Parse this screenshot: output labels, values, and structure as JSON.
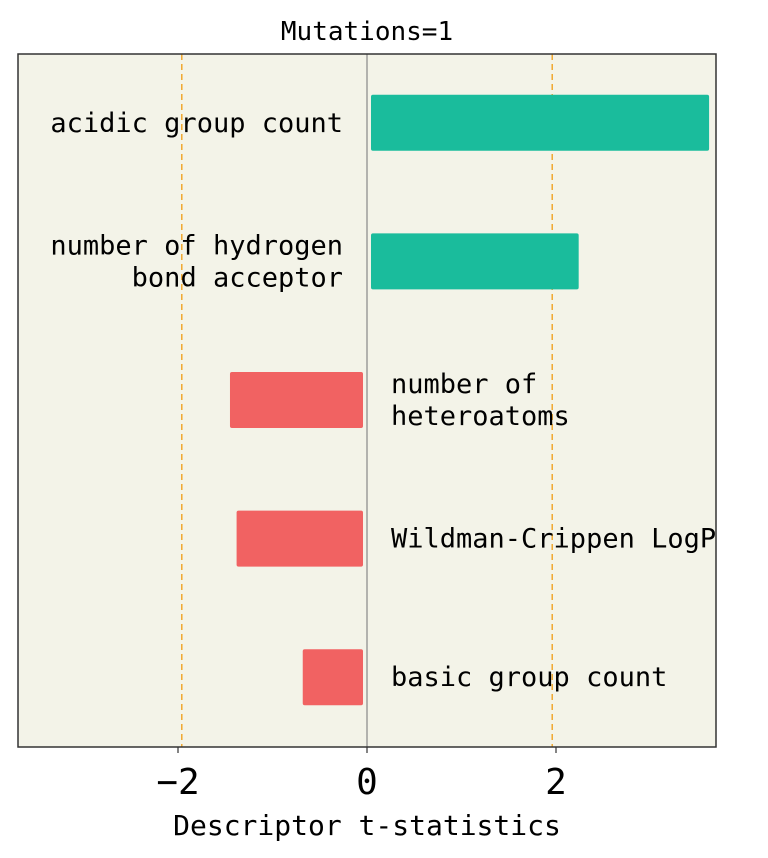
{
  "chart_data": {
    "type": "bar",
    "orientation": "horizontal",
    "title": "Mutations=1",
    "xlabel": "Descriptor t-statistics",
    "ylabel": "",
    "xlim": [
      -3.7,
      3.7
    ],
    "xticks": [
      -2,
      0,
      2
    ],
    "xtick_labels": [
      "−2",
      "0",
      "2"
    ],
    "reference_lines": [
      -1.96,
      1.96
    ],
    "grid": false,
    "colors": {
      "positive": "#1abc9c",
      "negative": "#f16262",
      "background": "#f3f3e8",
      "reference": "#f0a830",
      "zero": "#888888"
    },
    "bars": [
      {
        "label": [
          "acidic group count"
        ],
        "value": 3.62
      },
      {
        "label": [
          "number of hydrogen",
          "bond acceptor"
        ],
        "value": 2.24
      },
      {
        "label": [
          "number of",
          "heteroatoms"
        ],
        "value": -1.45
      },
      {
        "label": [
          "Wildman-Crippen LogP"
        ],
        "value": -1.38
      },
      {
        "label": [
          "basic group count"
        ],
        "value": -0.68
      }
    ]
  }
}
